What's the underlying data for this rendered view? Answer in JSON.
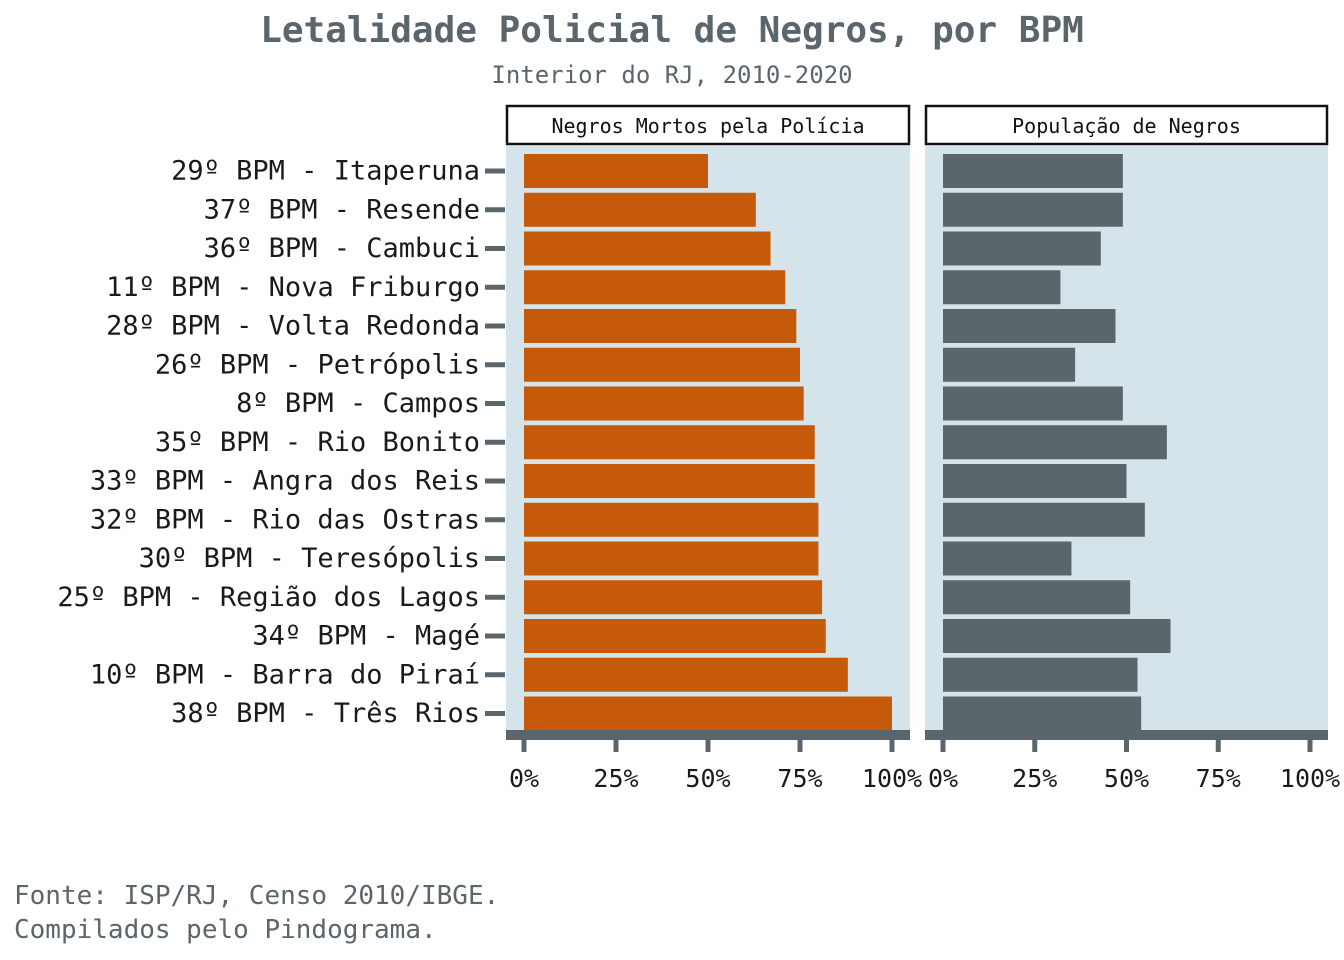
{
  "chart_data": {
    "type": "bar",
    "orientation": "horizontal",
    "title": "Letalidade Policial de Negros, por BPM",
    "subtitle": "Interior do RJ, 2010-2020",
    "caption": [
      "Fonte: ISP/RJ, Censo 2010/IBGE.",
      "Compilados pelo Pindograma."
    ],
    "categories": [
      "29º BPM - Itaperuna",
      "37º BPM - Resende",
      "36º BPM - Cambuci",
      "11º BPM - Nova Friburgo",
      "28º BPM - Volta Redonda",
      "26º BPM - Petrópolis",
      "8º BPM - Campos",
      "35º BPM - Rio Bonito",
      "33º BPM - Angra dos Reis",
      "32º BPM - Rio das Ostras",
      "30º BPM - Teresópolis",
      "25º BPM - Região dos Lagos",
      "34º BPM - Magé",
      "10º BPM - Barra do Piraí",
      "38º BPM - Três Rios"
    ],
    "xlim": [
      0,
      100
    ],
    "ticks": [
      "0%",
      "25%",
      "50%",
      "75%",
      "100%"
    ],
    "tick_values": [
      0,
      25,
      50,
      75,
      100
    ],
    "panel_background": "#d4e4ea",
    "panels": [
      {
        "label": "Negros Mortos pela Polícia",
        "color": "#c55a0b",
        "values": [
          50,
          63,
          67,
          71,
          74,
          75,
          76,
          79,
          79,
          80,
          80,
          81,
          82,
          88,
          100
        ]
      },
      {
        "label": "População de Negros",
        "color": "#5b656c",
        "values": [
          49,
          49,
          43,
          32,
          47,
          36,
          49,
          61,
          50,
          55,
          35,
          51,
          62,
          53,
          54
        ]
      }
    ]
  }
}
